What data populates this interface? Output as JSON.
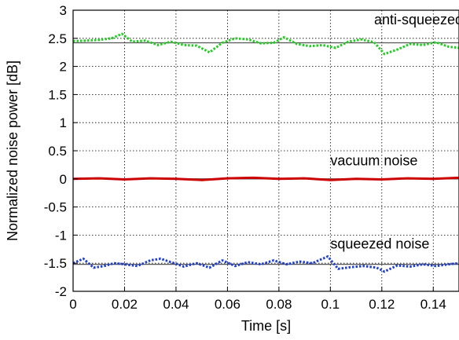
{
  "chart_data": {
    "type": "line",
    "title": "",
    "xlabel": "Time [s]",
    "ylabel": "Normalized noise power [dB]",
    "xlim": [
      0,
      0.15
    ],
    "ylim": [
      -2,
      3
    ],
    "grid": true,
    "xticks": [
      0,
      0.02,
      0.04,
      0.06,
      0.08,
      0.1,
      0.12,
      0.14
    ],
    "xtick_labels": [
      "0",
      "0.02",
      "0.04",
      "0.06",
      "0.08",
      "0.1",
      "0.12",
      "0.14"
    ],
    "yticks": [
      -2,
      -1.5,
      -1,
      -0.5,
      0,
      0.5,
      1,
      1.5,
      2,
      2.5,
      3
    ],
    "ytick_labels": [
      "-2",
      "-1.5",
      "-1",
      "-0.5",
      "0",
      "0.5",
      "1",
      "1.5",
      "2",
      "2.5",
      "3"
    ],
    "reference_lines": [
      {
        "y": 2.42,
        "color": "#555555"
      },
      {
        "y": 0.0,
        "color": "#555555"
      },
      {
        "y": -1.52,
        "color": "#555555"
      }
    ],
    "series": [
      {
        "color": "#22cc22",
        "style": "dotted",
        "x": [
          0,
          0.005,
          0.01,
          0.015,
          0.019,
          0.023,
          0.028,
          0.033,
          0.038,
          0.043,
          0.048,
          0.053,
          0.058,
          0.063,
          0.068,
          0.073,
          0.078,
          0.082,
          0.087,
          0.092,
          0.097,
          0.102,
          0.107,
          0.112,
          0.117,
          0.121,
          0.126,
          0.131,
          0.136,
          0.141,
          0.146,
          0.15
        ],
        "y": [
          2.45,
          2.46,
          2.47,
          2.5,
          2.58,
          2.44,
          2.46,
          2.38,
          2.44,
          2.38,
          2.37,
          2.25,
          2.42,
          2.5,
          2.48,
          2.41,
          2.42,
          2.52,
          2.4,
          2.36,
          2.38,
          2.33,
          2.44,
          2.48,
          2.43,
          2.22,
          2.3,
          2.4,
          2.38,
          2.43,
          2.35,
          2.33
        ]
      },
      {
        "color": "#cc0000",
        "style": "solid",
        "x": [
          0,
          0.01,
          0.02,
          0.03,
          0.04,
          0.05,
          0.06,
          0.07,
          0.08,
          0.09,
          0.1,
          0.11,
          0.12,
          0.13,
          0.14,
          0.15
        ],
        "y": [
          0.0,
          0.01,
          -0.01,
          0.01,
          0.0,
          -0.02,
          0.01,
          0.02,
          0.0,
          0.01,
          -0.02,
          0.0,
          -0.01,
          0.01,
          0.0,
          0.02
        ]
      },
      {
        "color": "#1f3fd1",
        "style": "dotted",
        "x": [
          0,
          0.004,
          0.008,
          0.012,
          0.016,
          0.02,
          0.025,
          0.03,
          0.034,
          0.038,
          0.043,
          0.048,
          0.053,
          0.058,
          0.063,
          0.068,
          0.073,
          0.078,
          0.083,
          0.088,
          0.093,
          0.099,
          0.103,
          0.108,
          0.113,
          0.118,
          0.121,
          0.126,
          0.131,
          0.136,
          0.141,
          0.146,
          0.15
        ],
        "y": [
          -1.5,
          -1.42,
          -1.58,
          -1.55,
          -1.5,
          -1.52,
          -1.55,
          -1.45,
          -1.42,
          -1.48,
          -1.56,
          -1.5,
          -1.58,
          -1.45,
          -1.55,
          -1.48,
          -1.52,
          -1.45,
          -1.52,
          -1.47,
          -1.5,
          -1.38,
          -1.6,
          -1.57,
          -1.55,
          -1.58,
          -1.65,
          -1.54,
          -1.56,
          -1.52,
          -1.55,
          -1.52,
          -1.5
        ]
      }
    ],
    "annotations": [
      {
        "text": "anti-squeezed noise",
        "x": 0.117,
        "y": 2.75
      },
      {
        "text": "vacuum noise",
        "x": 0.1,
        "y": 0.24
      },
      {
        "text": "squeezed noise",
        "x": 0.1,
        "y": -1.24
      }
    ]
  }
}
